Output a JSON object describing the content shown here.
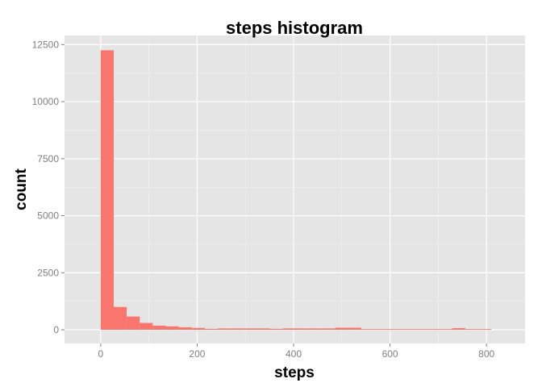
{
  "chart_data": {
    "type": "bar",
    "title": "steps histogram",
    "xlabel": "steps",
    "ylabel": "count",
    "binwidth": 27,
    "bin_starts": [
      0,
      27,
      54,
      81,
      108,
      135,
      162,
      189,
      216,
      243,
      270,
      297,
      324,
      351,
      378,
      405,
      432,
      459,
      486,
      513,
      540,
      567,
      594,
      621,
      648,
      675,
      702,
      729,
      756,
      783
    ],
    "values": [
      12250,
      1000,
      580,
      300,
      180,
      150,
      110,
      80,
      40,
      60,
      60,
      60,
      60,
      40,
      60,
      60,
      60,
      60,
      90,
      90,
      30,
      30,
      30,
      30,
      30,
      30,
      30,
      70,
      30,
      30
    ],
    "xlim": [
      -75,
      880
    ],
    "ylim": [
      -600,
      12900
    ],
    "x_ticks": [
      0,
      200,
      400,
      600,
      800
    ],
    "y_ticks": [
      0,
      2500,
      5000,
      7500,
      10000,
      12500
    ],
    "x_tick_labels": [
      "0",
      "200",
      "400",
      "600",
      "800"
    ],
    "y_tick_labels": [
      "0",
      "2500",
      "5000",
      "7500",
      "10000",
      "12500"
    ],
    "grid": true,
    "colors": {
      "bar": "#f8766d",
      "panel": "#e5e5e5",
      "grid_major": "#ffffff",
      "grid_minor": "#f2f2f2"
    }
  }
}
